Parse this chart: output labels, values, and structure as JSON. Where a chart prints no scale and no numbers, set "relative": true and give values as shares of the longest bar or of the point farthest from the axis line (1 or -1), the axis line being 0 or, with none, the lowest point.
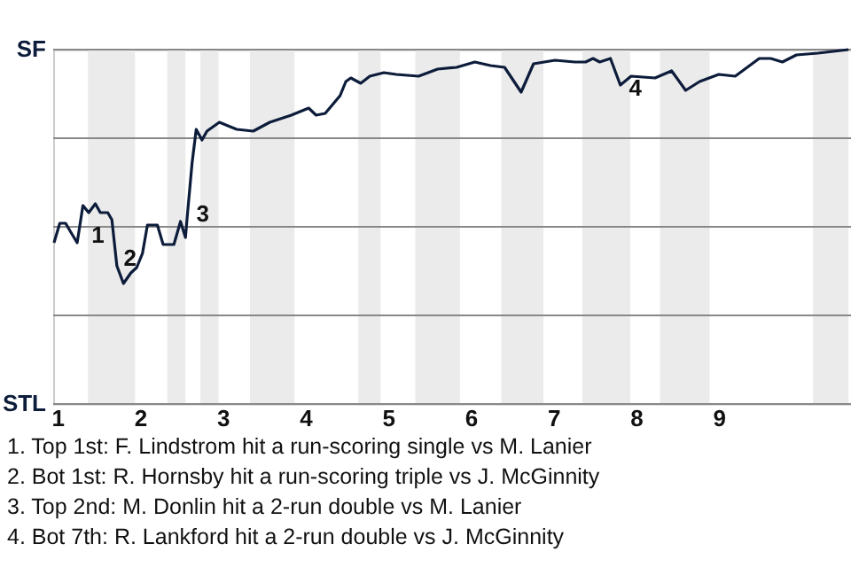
{
  "chart_data": {
    "type": "line",
    "x": [
      0.96,
      1.03,
      1.1,
      1.15,
      1.24,
      1.31,
      1.38,
      1.46,
      1.52,
      1.61,
      1.66,
      1.72,
      1.8,
      1.89,
      1.96,
      2.03,
      2.09,
      2.21,
      2.28,
      2.41,
      2.49,
      2.55,
      2.57,
      2.63,
      2.68,
      2.75,
      2.81,
      2.96,
      3.17,
      3.37,
      3.57,
      3.83,
      4.04,
      4.13,
      4.24,
      4.42,
      4.49,
      4.55,
      4.67,
      4.78,
      4.95,
      5.1,
      5.37,
      5.6,
      5.83,
      6.05,
      6.24,
      6.41,
      6.61,
      6.76,
      7.02,
      7.26,
      7.39,
      7.48,
      7.56,
      7.69,
      7.81,
      7.94,
      8.23,
      8.43,
      8.6,
      8.77,
      9.0,
      9.2,
      9.49,
      9.63,
      9.77,
      9.94,
      10.2,
      10.57
    ],
    "series": [
      {
        "color": "#0c1c3a",
        "values": [
          0.455,
          0.51,
          0.51,
          0.49,
          0.455,
          0.56,
          0.54,
          0.565,
          0.54,
          0.54,
          0.52,
          0.39,
          0.34,
          0.37,
          0.385,
          0.425,
          0.505,
          0.505,
          0.45,
          0.45,
          0.515,
          0.47,
          0.525,
          0.68,
          0.775,
          0.745,
          0.77,
          0.795,
          0.775,
          0.77,
          0.795,
          0.815,
          0.835,
          0.815,
          0.82,
          0.87,
          0.91,
          0.92,
          0.905,
          0.925,
          0.935,
          0.93,
          0.925,
          0.945,
          0.95,
          0.965,
          0.955,
          0.95,
          0.88,
          0.96,
          0.97,
          0.965,
          0.965,
          0.975,
          0.965,
          0.975,
          0.9,
          0.925,
          0.92,
          0.94,
          0.885,
          0.91,
          0.93,
          0.925,
          0.975,
          0.975,
          0.965,
          0.985,
          0.99,
          1.0
        ]
      }
    ],
    "relative": true,
    "xlim": [
      0.95,
      10.6
    ],
    "xticks": [
      1,
      2,
      3,
      4,
      5,
      6,
      7,
      8,
      9
    ],
    "ref_lines": [
      {
        "axis": "y",
        "value": 0,
        "color": "#888888",
        "label": "STL"
      },
      {
        "axis": "y",
        "value": 0.25,
        "color": "#888888"
      },
      {
        "axis": "y",
        "value": 0.5,
        "color": "#888888"
      },
      {
        "axis": "y",
        "value": 0.75,
        "color": "#888888"
      },
      {
        "axis": "y",
        "value": 1,
        "color": "#888888",
        "label": "SF"
      }
    ],
    "bands": [
      {
        "axis": "x",
        "from": 1.37,
        "to": 1.94,
        "color": "#ebebeb"
      },
      {
        "axis": "x",
        "from": 2.33,
        "to": 2.55,
        "color": "#ebebeb"
      },
      {
        "axis": "x",
        "from": 2.73,
        "to": 2.95,
        "color": "#ebebeb"
      },
      {
        "axis": "x",
        "from": 3.33,
        "to": 3.87,
        "color": "#ebebeb"
      },
      {
        "axis": "x",
        "from": 4.64,
        "to": 4.91,
        "color": "#ebebeb"
      },
      {
        "axis": "x",
        "from": 5.33,
        "to": 5.87,
        "color": "#ebebeb"
      },
      {
        "axis": "x",
        "from": 6.37,
        "to": 6.88,
        "color": "#ebebeb"
      },
      {
        "axis": "x",
        "from": 7.35,
        "to": 7.93,
        "color": "#ebebeb"
      },
      {
        "axis": "x",
        "from": 8.29,
        "to": 8.89,
        "color": "#ebebeb"
      },
      {
        "axis": "x",
        "from": 10.14,
        "to": 10.57,
        "color": "#ebebeb"
      }
    ],
    "annotations": [
      {
        "text": "1",
        "x": 1.37,
        "y": 0.49
      },
      {
        "text": "2",
        "x": 1.76,
        "y": 0.425
      },
      {
        "text": "3",
        "x": 2.64,
        "y": 0.55
      },
      {
        "text": "4",
        "x": 7.87,
        "y": 0.905
      },
      "1. Top 1st: F. Lindstrom hit a run-scoring single vs M. Lanier",
      "2. Bot 1st: R. Hornsby hit a run-scoring triple vs J. McGinnity",
      "3. Top 2nd: M. Donlin hit a 2-run double vs M. Lanier",
      "4. Bot 7th: R. Lankford hit a 2-run double vs J. McGinnity"
    ]
  }
}
